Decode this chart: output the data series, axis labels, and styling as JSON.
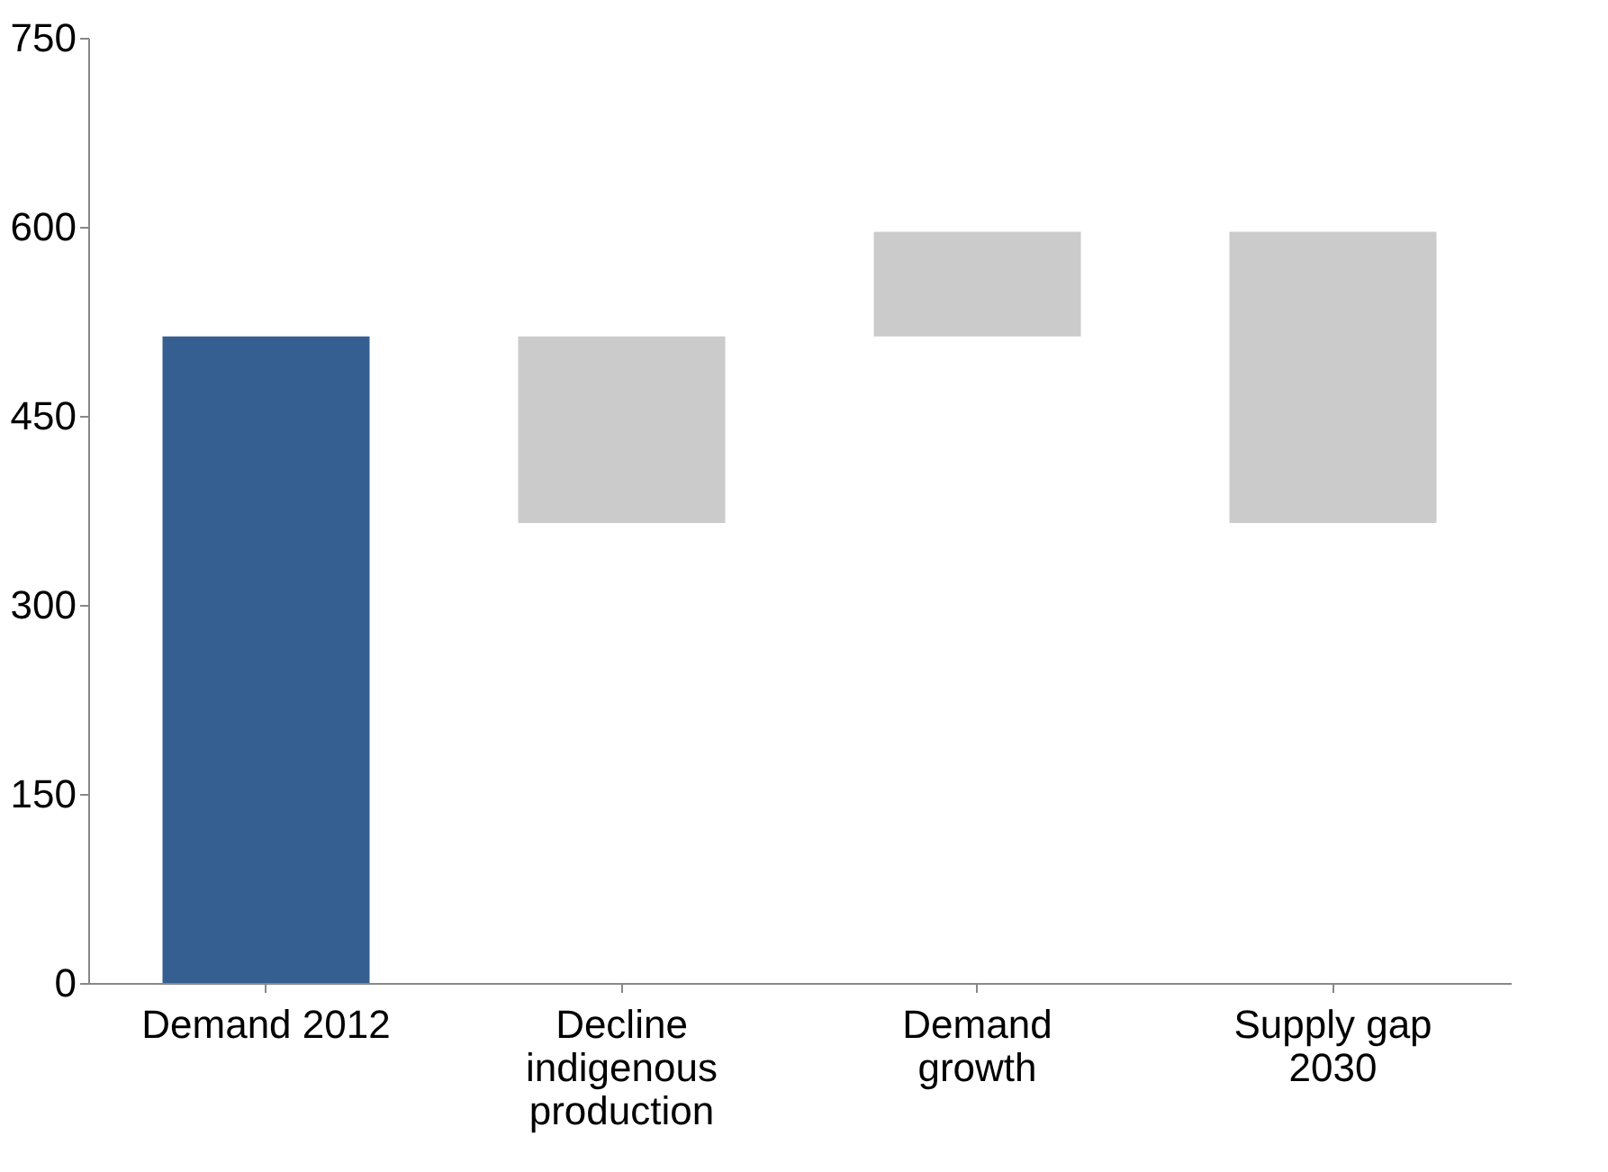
{
  "chart_data": {
    "type": "bar",
    "categories": [
      "Demand 2012",
      "Decline indigenous production",
      "Demand growth",
      "Supply gap 2030"
    ],
    "values": [
      513,
      148,
      83,
      231
    ],
    "base": [
      0,
      365,
      513,
      365
    ],
    "colors": [
      "#365f91",
      "#cbcbcb",
      "#cbcbcb",
      "#cbcbcb"
    ],
    "ylim": [
      0,
      750
    ],
    "yticks": [
      0,
      150,
      300,
      450,
      600,
      750
    ],
    "grid": false
  }
}
